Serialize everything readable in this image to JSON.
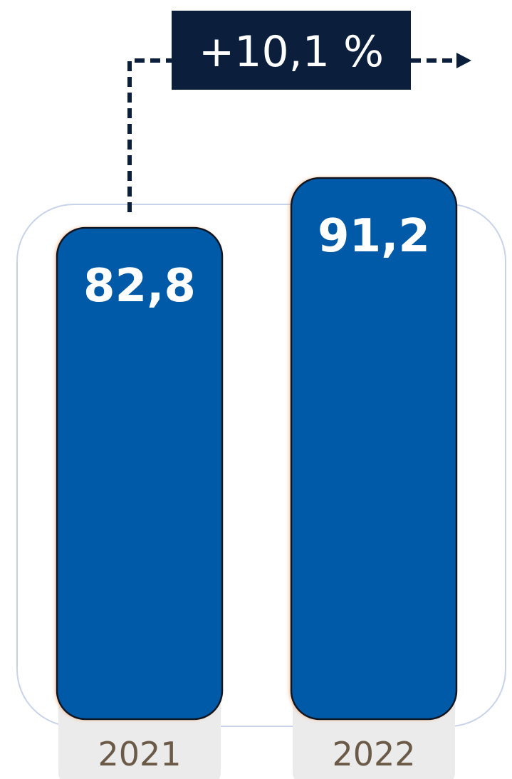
{
  "chart_data": {
    "type": "bar",
    "categories": [
      "2021",
      "2022"
    ],
    "values": [
      82.8,
      91.2
    ],
    "value_labels": [
      "82,8",
      "91,2"
    ],
    "growth_annotation": "+10,1 %",
    "title": "",
    "xlabel": "",
    "ylabel": "",
    "ylim": [
      0,
      100
    ],
    "grid": false,
    "legend": "none"
  },
  "colors": {
    "bar_fill": "#005aa8",
    "bar_stroke": "#0f1724",
    "annotation_box": "#0b1f3d",
    "arrow": "#0b1f3d",
    "category_label": "#6b5a48",
    "category_tab": "#ebebeb",
    "panel_outline": "#c8d3ea"
  }
}
